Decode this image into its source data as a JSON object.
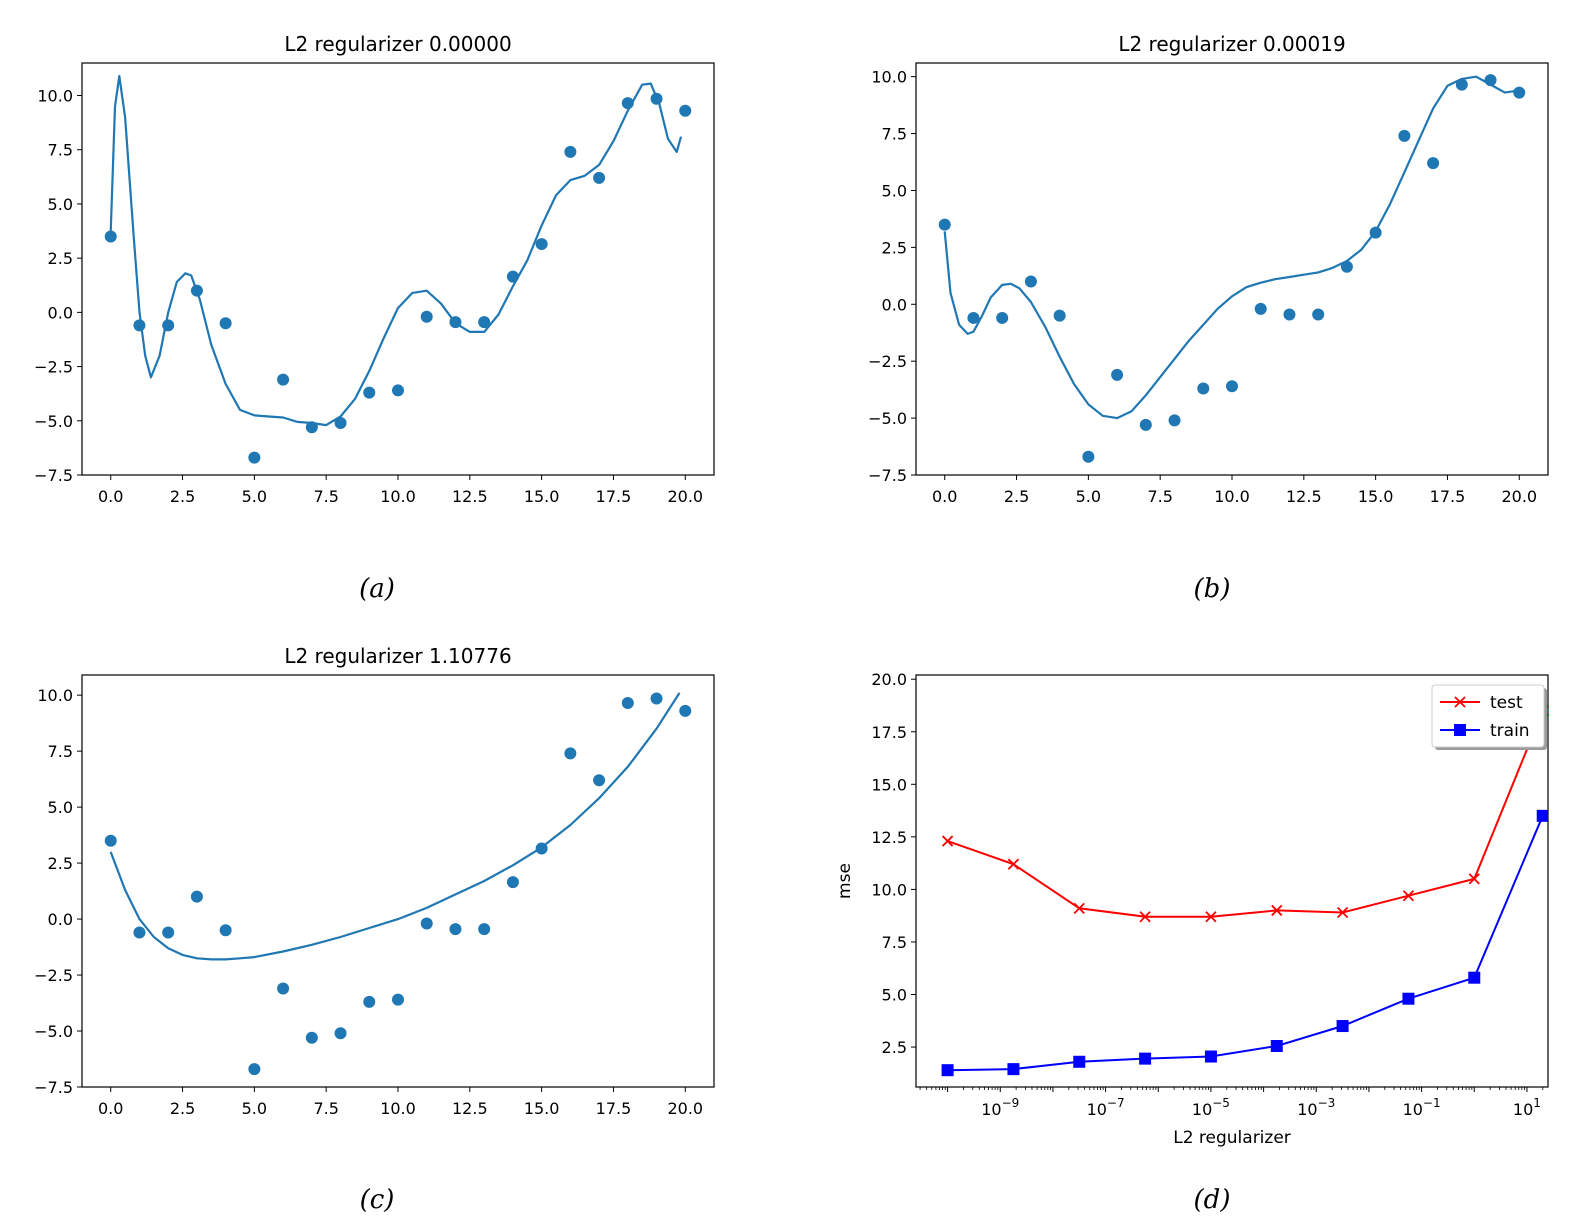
{
  "chart_data": [
    {
      "type": "scatter",
      "title": "L2 regularizer 0.00000",
      "caption": "(a)",
      "xlabel": "",
      "ylabel": "",
      "xlim": [
        -1,
        21
      ],
      "ylim": [
        -7.5,
        11.5
      ],
      "xticks": [
        0,
        2.5,
        5,
        7.5,
        10,
        12.5,
        15,
        17.5,
        20
      ],
      "xtick_labels": [
        "0.0",
        "2.5",
        "5.0",
        "7.5",
        "10.0",
        "12.5",
        "15.0",
        "17.5",
        "20.0"
      ],
      "yticks": [
        -7.5,
        -5,
        -2.5,
        0,
        2.5,
        5,
        7.5,
        10
      ],
      "ytick_labels": [
        "−7.5",
        "−5.0",
        "−2.5",
        "0.0",
        "2.5",
        "5.0",
        "7.5",
        "10.0"
      ],
      "points": {
        "x": [
          0,
          1,
          2,
          3,
          4,
          5,
          6,
          7,
          8,
          9,
          10,
          11,
          12,
          13,
          14,
          15,
          16,
          17,
          18,
          19,
          20
        ],
        "y": [
          3.5,
          -0.6,
          -0.6,
          1.0,
          -0.5,
          -6.7,
          -3.1,
          -5.3,
          -5.1,
          -3.7,
          -3.6,
          -0.2,
          -0.45,
          -0.45,
          1.65,
          3.15,
          7.4,
          6.2,
          9.65,
          9.85,
          9.3
        ]
      },
      "fit": {
        "x": [
          0,
          0.15,
          0.3,
          0.5,
          0.8,
          1.0,
          1.2,
          1.4,
          1.7,
          2.0,
          2.3,
          2.6,
          2.8,
          3.1,
          3.5,
          4.0,
          4.5,
          5.0,
          5.5,
          6.0,
          6.5,
          7.0,
          7.5,
          8.0,
          8.5,
          9.0,
          9.5,
          10.0,
          10.5,
          11.0,
          11.5,
          12.0,
          12.5,
          13.0,
          13.5,
          14.0,
          14.5,
          15.0,
          15.5,
          16.0,
          16.5,
          17.0,
          17.5,
          18.0,
          18.5,
          18.8,
          19.1,
          19.4,
          19.7,
          19.85
        ],
        "y": [
          3.7,
          9.5,
          10.9,
          9.0,
          3.5,
          0.0,
          -2.0,
          -3.0,
          -2.0,
          0.0,
          1.4,
          1.8,
          1.7,
          0.6,
          -1.5,
          -3.3,
          -4.5,
          -4.75,
          -4.8,
          -4.85,
          -5.05,
          -5.1,
          -5.2,
          -4.8,
          -4.0,
          -2.7,
          -1.2,
          0.2,
          0.9,
          1.0,
          0.4,
          -0.5,
          -0.9,
          -0.9,
          -0.1,
          1.2,
          2.4,
          4.0,
          5.4,
          6.1,
          6.3,
          6.8,
          7.9,
          9.3,
          10.5,
          10.55,
          9.6,
          8.0,
          7.4,
          8.1
        ]
      }
    },
    {
      "type": "scatter",
      "title": "L2 regularizer 0.00019",
      "caption": "(b)",
      "xlabel": "",
      "ylabel": "",
      "xlim": [
        -1,
        21
      ],
      "ylim": [
        -7.5,
        10.6
      ],
      "xticks": [
        0,
        2.5,
        5,
        7.5,
        10,
        12.5,
        15,
        17.5,
        20
      ],
      "xtick_labels": [
        "0.0",
        "2.5",
        "5.0",
        "7.5",
        "10.0",
        "12.5",
        "15.0",
        "17.5",
        "20.0"
      ],
      "yticks": [
        -7.5,
        -5,
        -2.5,
        0,
        2.5,
        5,
        7.5,
        10
      ],
      "ytick_labels": [
        "−7.5",
        "−5.0",
        "−2.5",
        "0.0",
        "2.5",
        "5.0",
        "7.5",
        "10.0"
      ],
      "points": {
        "x": [
          0,
          1,
          2,
          3,
          4,
          5,
          6,
          7,
          8,
          9,
          10,
          11,
          12,
          13,
          14,
          15,
          16,
          17,
          18,
          19,
          20
        ],
        "y": [
          3.5,
          -0.6,
          -0.6,
          1.0,
          -0.5,
          -6.7,
          -3.1,
          -5.3,
          -5.1,
          -3.7,
          -3.6,
          -0.2,
          -0.45,
          -0.45,
          1.65,
          3.15,
          7.4,
          6.2,
          9.65,
          9.85,
          9.3
        ]
      },
      "fit": {
        "x": [
          0,
          0.2,
          0.5,
          0.8,
          1.0,
          1.3,
          1.6,
          2.0,
          2.3,
          2.6,
          3.0,
          3.5,
          4.0,
          4.5,
          5.0,
          5.5,
          6.0,
          6.5,
          7.0,
          7.5,
          8.0,
          8.5,
          9.0,
          9.5,
          10.0,
          10.5,
          11.0,
          11.5,
          12.0,
          12.5,
          13.0,
          13.5,
          14.0,
          14.5,
          15.0,
          15.5,
          16.0,
          16.5,
          17.0,
          17.5,
          18.0,
          18.5,
          19.0,
          19.5,
          20.0
        ],
        "y": [
          3.2,
          0.5,
          -0.9,
          -1.3,
          -1.2,
          -0.5,
          0.3,
          0.85,
          0.9,
          0.7,
          0.1,
          -1.0,
          -2.3,
          -3.5,
          -4.4,
          -4.9,
          -5.0,
          -4.7,
          -4.0,
          -3.2,
          -2.4,
          -1.6,
          -0.9,
          -0.2,
          0.35,
          0.75,
          0.95,
          1.1,
          1.2,
          1.3,
          1.4,
          1.6,
          1.9,
          2.4,
          3.2,
          4.4,
          5.8,
          7.2,
          8.6,
          9.6,
          9.9,
          10.0,
          9.65,
          9.3,
          9.4
        ]
      }
    },
    {
      "type": "scatter",
      "title": "L2 regularizer 1.10776",
      "caption": "(c)",
      "xlabel": "",
      "ylabel": "",
      "xlim": [
        -1,
        21
      ],
      "ylim": [
        -7.5,
        10.9
      ],
      "xticks": [
        0,
        2.5,
        5,
        7.5,
        10,
        12.5,
        15,
        17.5,
        20
      ],
      "xtick_labels": [
        "0.0",
        "2.5",
        "5.0",
        "7.5",
        "10.0",
        "12.5",
        "15.0",
        "17.5",
        "20.0"
      ],
      "yticks": [
        -7.5,
        -5,
        -2.5,
        0,
        2.5,
        5,
        7.5,
        10
      ],
      "ytick_labels": [
        "−7.5",
        "−5.0",
        "−2.5",
        "0.0",
        "2.5",
        "5.0",
        "7.5",
        "10.0"
      ],
      "points": {
        "x": [
          0,
          1,
          2,
          3,
          4,
          5,
          6,
          7,
          8,
          9,
          10,
          11,
          12,
          13,
          14,
          15,
          16,
          17,
          18,
          19,
          20
        ],
        "y": [
          3.5,
          -0.6,
          -0.6,
          1.0,
          -0.5,
          -6.7,
          -3.1,
          -5.3,
          -5.1,
          -3.7,
          -3.6,
          -0.2,
          -0.45,
          -0.45,
          1.65,
          3.15,
          7.4,
          6.2,
          9.65,
          9.85,
          9.3
        ]
      },
      "fit": {
        "x": [
          0,
          0.5,
          1.0,
          1.5,
          2.0,
          2.5,
          3.0,
          3.5,
          4.0,
          4.5,
          5.0,
          6.0,
          7.0,
          8.0,
          9.0,
          10.0,
          11.0,
          12.0,
          13.0,
          14.0,
          15.0,
          16.0,
          17.0,
          18.0,
          19.0,
          19.8
        ],
        "y": [
          3.0,
          1.3,
          0.0,
          -0.8,
          -1.3,
          -1.6,
          -1.75,
          -1.8,
          -1.8,
          -1.75,
          -1.7,
          -1.45,
          -1.15,
          -0.8,
          -0.4,
          0.0,
          0.5,
          1.1,
          1.7,
          2.4,
          3.2,
          4.2,
          5.4,
          6.8,
          8.5,
          10.1
        ]
      }
    },
    {
      "type": "line",
      "title": "",
      "caption": "(d)",
      "xlabel": "L2 regularizer",
      "ylabel": "mse",
      "xscale": "log",
      "xlim_log10": [
        -10.6,
        1.4
      ],
      "ylim": [
        0.6,
        20.2
      ],
      "xticks_log10": [
        -9,
        -7,
        -5,
        -3,
        -1,
        1
      ],
      "xtick_bases": [
        "10",
        "10",
        "10",
        "10",
        "10",
        "10"
      ],
      "xtick_exponents": [
        "−9",
        "−7",
        "−5",
        "−3",
        "−1",
        "1"
      ],
      "yticks": [
        2.5,
        5,
        7.5,
        10,
        12.5,
        15,
        17.5,
        20
      ],
      "ytick_labels": [
        "2.5",
        "5.0",
        "7.5",
        "10.0",
        "12.5",
        "15.0",
        "17.5",
        "20.0"
      ],
      "legend_position": "top-right",
      "x_log10": [
        -10.0,
        -8.75,
        -7.5,
        -6.25,
        -5.0,
        -3.75,
        -2.5,
        -1.25,
        0.0,
        1.3
      ],
      "series": [
        {
          "name": "test",
          "color": "#ff0000",
          "marker": "x",
          "values": [
            12.3,
            11.2,
            9.1,
            8.7,
            8.7,
            9.0,
            8.9,
            9.7,
            10.5,
            18.5
          ]
        },
        {
          "name": "train",
          "color": "#0000ff",
          "marker": "square",
          "values": [
            1.4,
            1.45,
            1.8,
            1.95,
            2.05,
            2.55,
            3.5,
            4.8,
            5.8,
            13.5
          ]
        }
      ]
    }
  ]
}
